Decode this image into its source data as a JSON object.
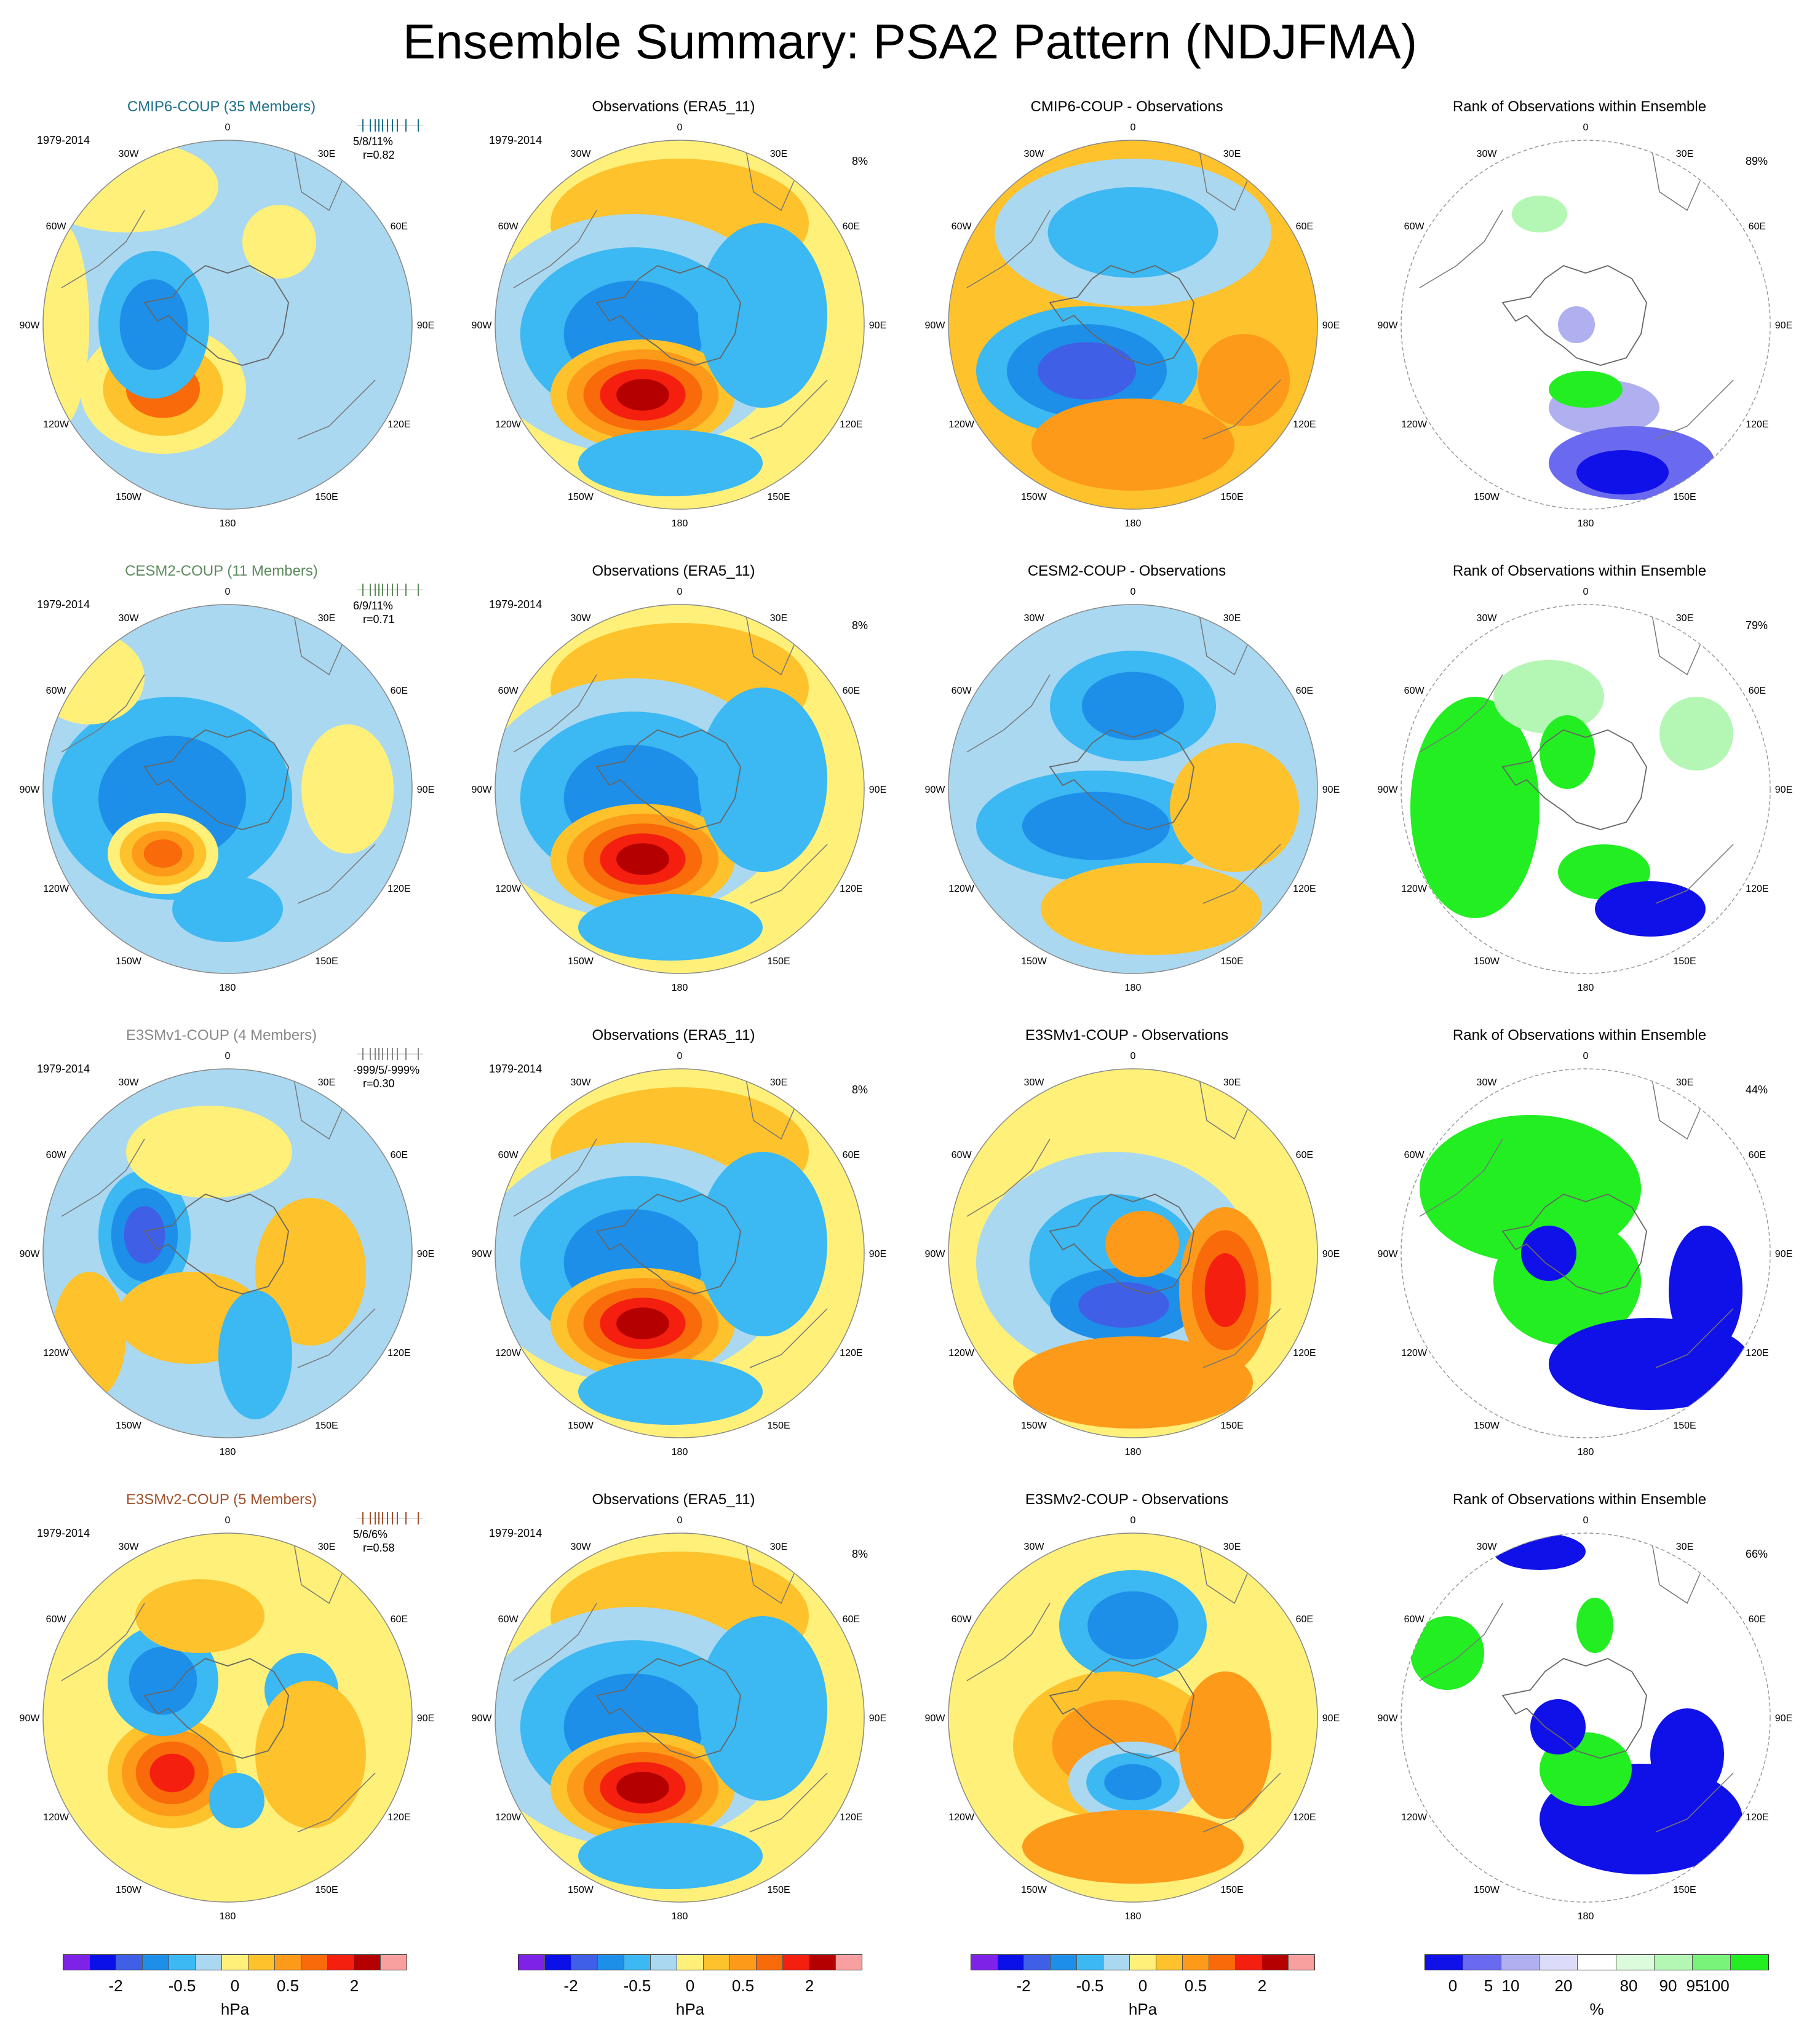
{
  "title": "Ensemble Summary: PSA2 Pattern (NDJFMA)",
  "colors": {
    "pattern": [
      "#7f22e8",
      "#0b10e8",
      "#3f5fe6",
      "#1e8fe8",
      "#3cb8f2",
      "#aad8f0",
      "#fff07a",
      "#fdc22c",
      "#fd9a1a",
      "#f86a0a",
      "#f51f10",
      "#b50000",
      "#f8a0a0"
    ],
    "rank": [
      "#1010e8",
      "#6a6af0",
      "#b0b0f0",
      "#dcdcfa",
      "#ffffff",
      "#dcfadc",
      "#b4f7b4",
      "#7af37a",
      "#22ee22"
    ]
  },
  "lon_labels": [
    "0",
    "30E",
    "60E",
    "90E",
    "120E",
    "150E",
    "180",
    "150W",
    "120W",
    "90W",
    "60W",
    "30W"
  ],
  "rows": [
    {
      "model": {
        "title": "CMIP6-COUP (35 Members)",
        "period": "1979-2014",
        "stat": "5/8/11%",
        "r": "r=0.82",
        "title_color": "#1d6f8b"
      },
      "obs": {
        "title": "Observations (ERA5_11)",
        "period": "1979-2014",
        "pct": "8%"
      },
      "diff": {
        "title": "CMIP6-COUP - Observations"
      },
      "rank": {
        "title": "Rank of Observations within Ensemble",
        "pct": "89%"
      }
    },
    {
      "model": {
        "title": "CESM2-COUP (11 Members)",
        "period": "1979-2014",
        "stat": "6/9/11%",
        "r": "r=0.71",
        "title_color": "#5d8a5d"
      },
      "obs": {
        "title": "Observations (ERA5_11)",
        "period": "1979-2014",
        "pct": "8%"
      },
      "diff": {
        "title": "CESM2-COUP - Observations"
      },
      "rank": {
        "title": "Rank of Observations within Ensemble",
        "pct": "79%"
      }
    },
    {
      "model": {
        "title": "E3SMv1-COUP (4 Members)",
        "period": "1979-2014",
        "stat": "-999/5/-999%",
        "r": "r=0.30",
        "title_color": "#888888"
      },
      "obs": {
        "title": "Observations (ERA5_11)",
        "period": "1979-2014",
        "pct": "8%"
      },
      "diff": {
        "title": "E3SMv1-COUP - Observations"
      },
      "rank": {
        "title": "Rank of Observations within Ensemble",
        "pct": "44%"
      }
    },
    {
      "model": {
        "title": "E3SMv2-COUP (5 Members)",
        "period": "1979-2014",
        "stat": "5/6/6%",
        "r": "r=0.58",
        "title_color": "#a0522d"
      },
      "obs": {
        "title": "Observations (ERA5_11)",
        "period": "1979-2014",
        "pct": "8%"
      },
      "diff": {
        "title": "E3SMv2-COUP - Observations"
      },
      "rank": {
        "title": "Rank of Observations within Ensemble",
        "pct": "66%"
      }
    }
  ],
  "colorbars": {
    "hpa": {
      "ticks": [
        "-2",
        "-0.5",
        "0",
        "0.5",
        "2"
      ],
      "unit": "hPa"
    },
    "rank": {
      "ticks": [
        "0",
        "5",
        "10",
        "20",
        "80",
        "90",
        "95",
        "100"
      ],
      "unit": "%"
    }
  },
  "chart_data": {
    "type": "heatmap",
    "title": "Ensemble Summary: PSA2 Pattern (NDJFMA)",
    "projection": "south polar stereographic",
    "columns": [
      "model ensemble mean",
      "observations",
      "model - observations",
      "rank of observations within ensemble"
    ],
    "pattern_colorbar": {
      "unit": "hPa",
      "labeled_ticks": [
        -2,
        -0.5,
        0,
        0.5,
        2
      ],
      "bins": 13
    },
    "rank_colorbar": {
      "unit": "%",
      "labeled_ticks": [
        0,
        5,
        10,
        20,
        80,
        90,
        95,
        100
      ],
      "bins": 9
    },
    "panels": [
      {
        "model": "CMIP6-COUP",
        "members": 35,
        "period": "1979-2014",
        "pct_range": "5/8/11%",
        "pattern_r": 0.82,
        "obs_pct": 8,
        "rank_pct": 89
      },
      {
        "model": "CESM2-COUP",
        "members": 11,
        "period": "1979-2014",
        "pct_range": "6/9/11%",
        "pattern_r": 0.71,
        "obs_pct": 8,
        "rank_pct": 79
      },
      {
        "model": "E3SMv1-COUP",
        "members": 4,
        "period": "1979-2014",
        "pct_range": "-999/5/-999%",
        "pattern_r": 0.3,
        "obs_pct": 8,
        "rank_pct": 44
      },
      {
        "model": "E3SMv2-COUP",
        "members": 5,
        "period": "1979-2014",
        "pct_range": "5/6/6%",
        "pattern_r": 0.58,
        "obs_pct": 8,
        "rank_pct": 66
      }
    ]
  }
}
